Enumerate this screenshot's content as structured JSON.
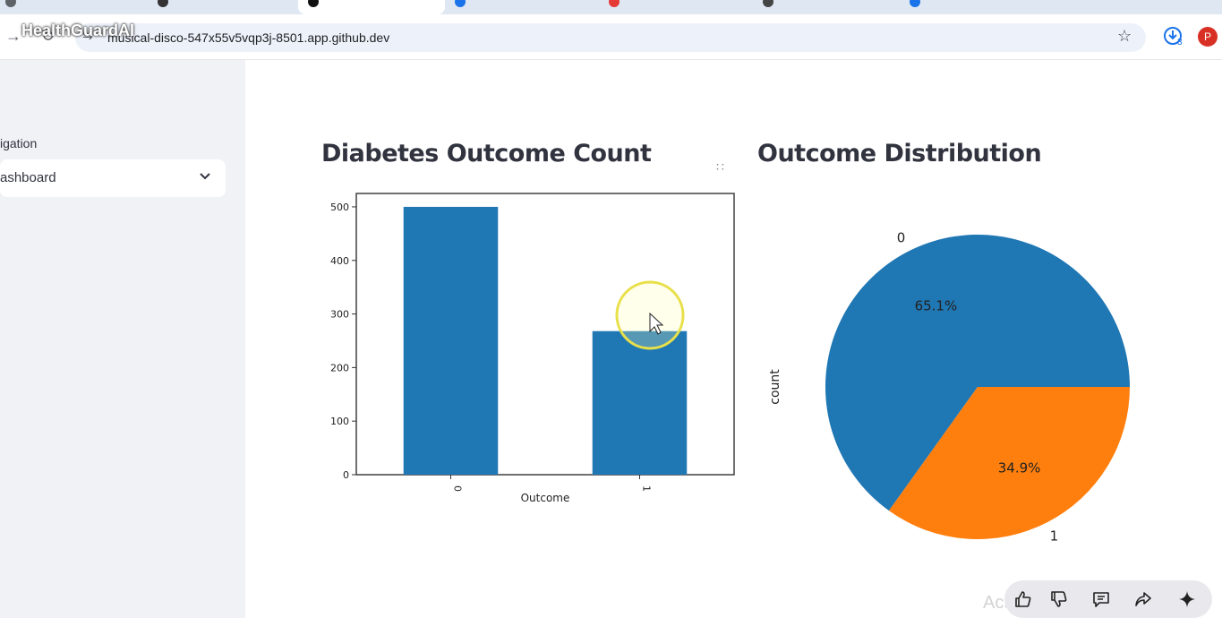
{
  "overlay": {
    "app_title": "HealthGuardAI"
  },
  "browser": {
    "url": "musical-disco-547x55v5vqp3j-8501.app.github.dev",
    "icons": [
      "back-arrow-icon",
      "reload-icon",
      "site-info-icon",
      "star-icon",
      "download-icon",
      "profile-avatar"
    ],
    "download_badge": "3",
    "profile_initial": "P"
  },
  "sidebar": {
    "nav_label": "igation",
    "select_value": "ashboard"
  },
  "bar_chart": {
    "heading": "Diabetes Outcome Count"
  },
  "pie_chart": {
    "heading": "Outcome Distribution"
  },
  "chart_data": [
    {
      "type": "bar",
      "categories": [
        "0",
        "1"
      ],
      "values": [
        500,
        268
      ],
      "xlabel": "Outcome",
      "ylabel": "",
      "ylim": [
        0,
        525
      ],
      "yticks": [
        0,
        100,
        200,
        300,
        400,
        500
      ],
      "color": "#1f77b4",
      "grid": false
    },
    {
      "type": "pie",
      "labels": [
        "0",
        "1"
      ],
      "values": [
        65.1,
        34.9
      ],
      "value_labels": [
        "65.1%",
        "34.9%"
      ],
      "ylabel": "count",
      "colors": [
        "#1f77b4",
        "#ff7f0e"
      ]
    }
  ],
  "footer": {
    "windows_watermark": "Activate Windows",
    "reaction_icons": [
      "thumbs-up-icon",
      "thumbs-down-icon",
      "comment-icon",
      "share-icon",
      "sparkle-icon"
    ]
  }
}
